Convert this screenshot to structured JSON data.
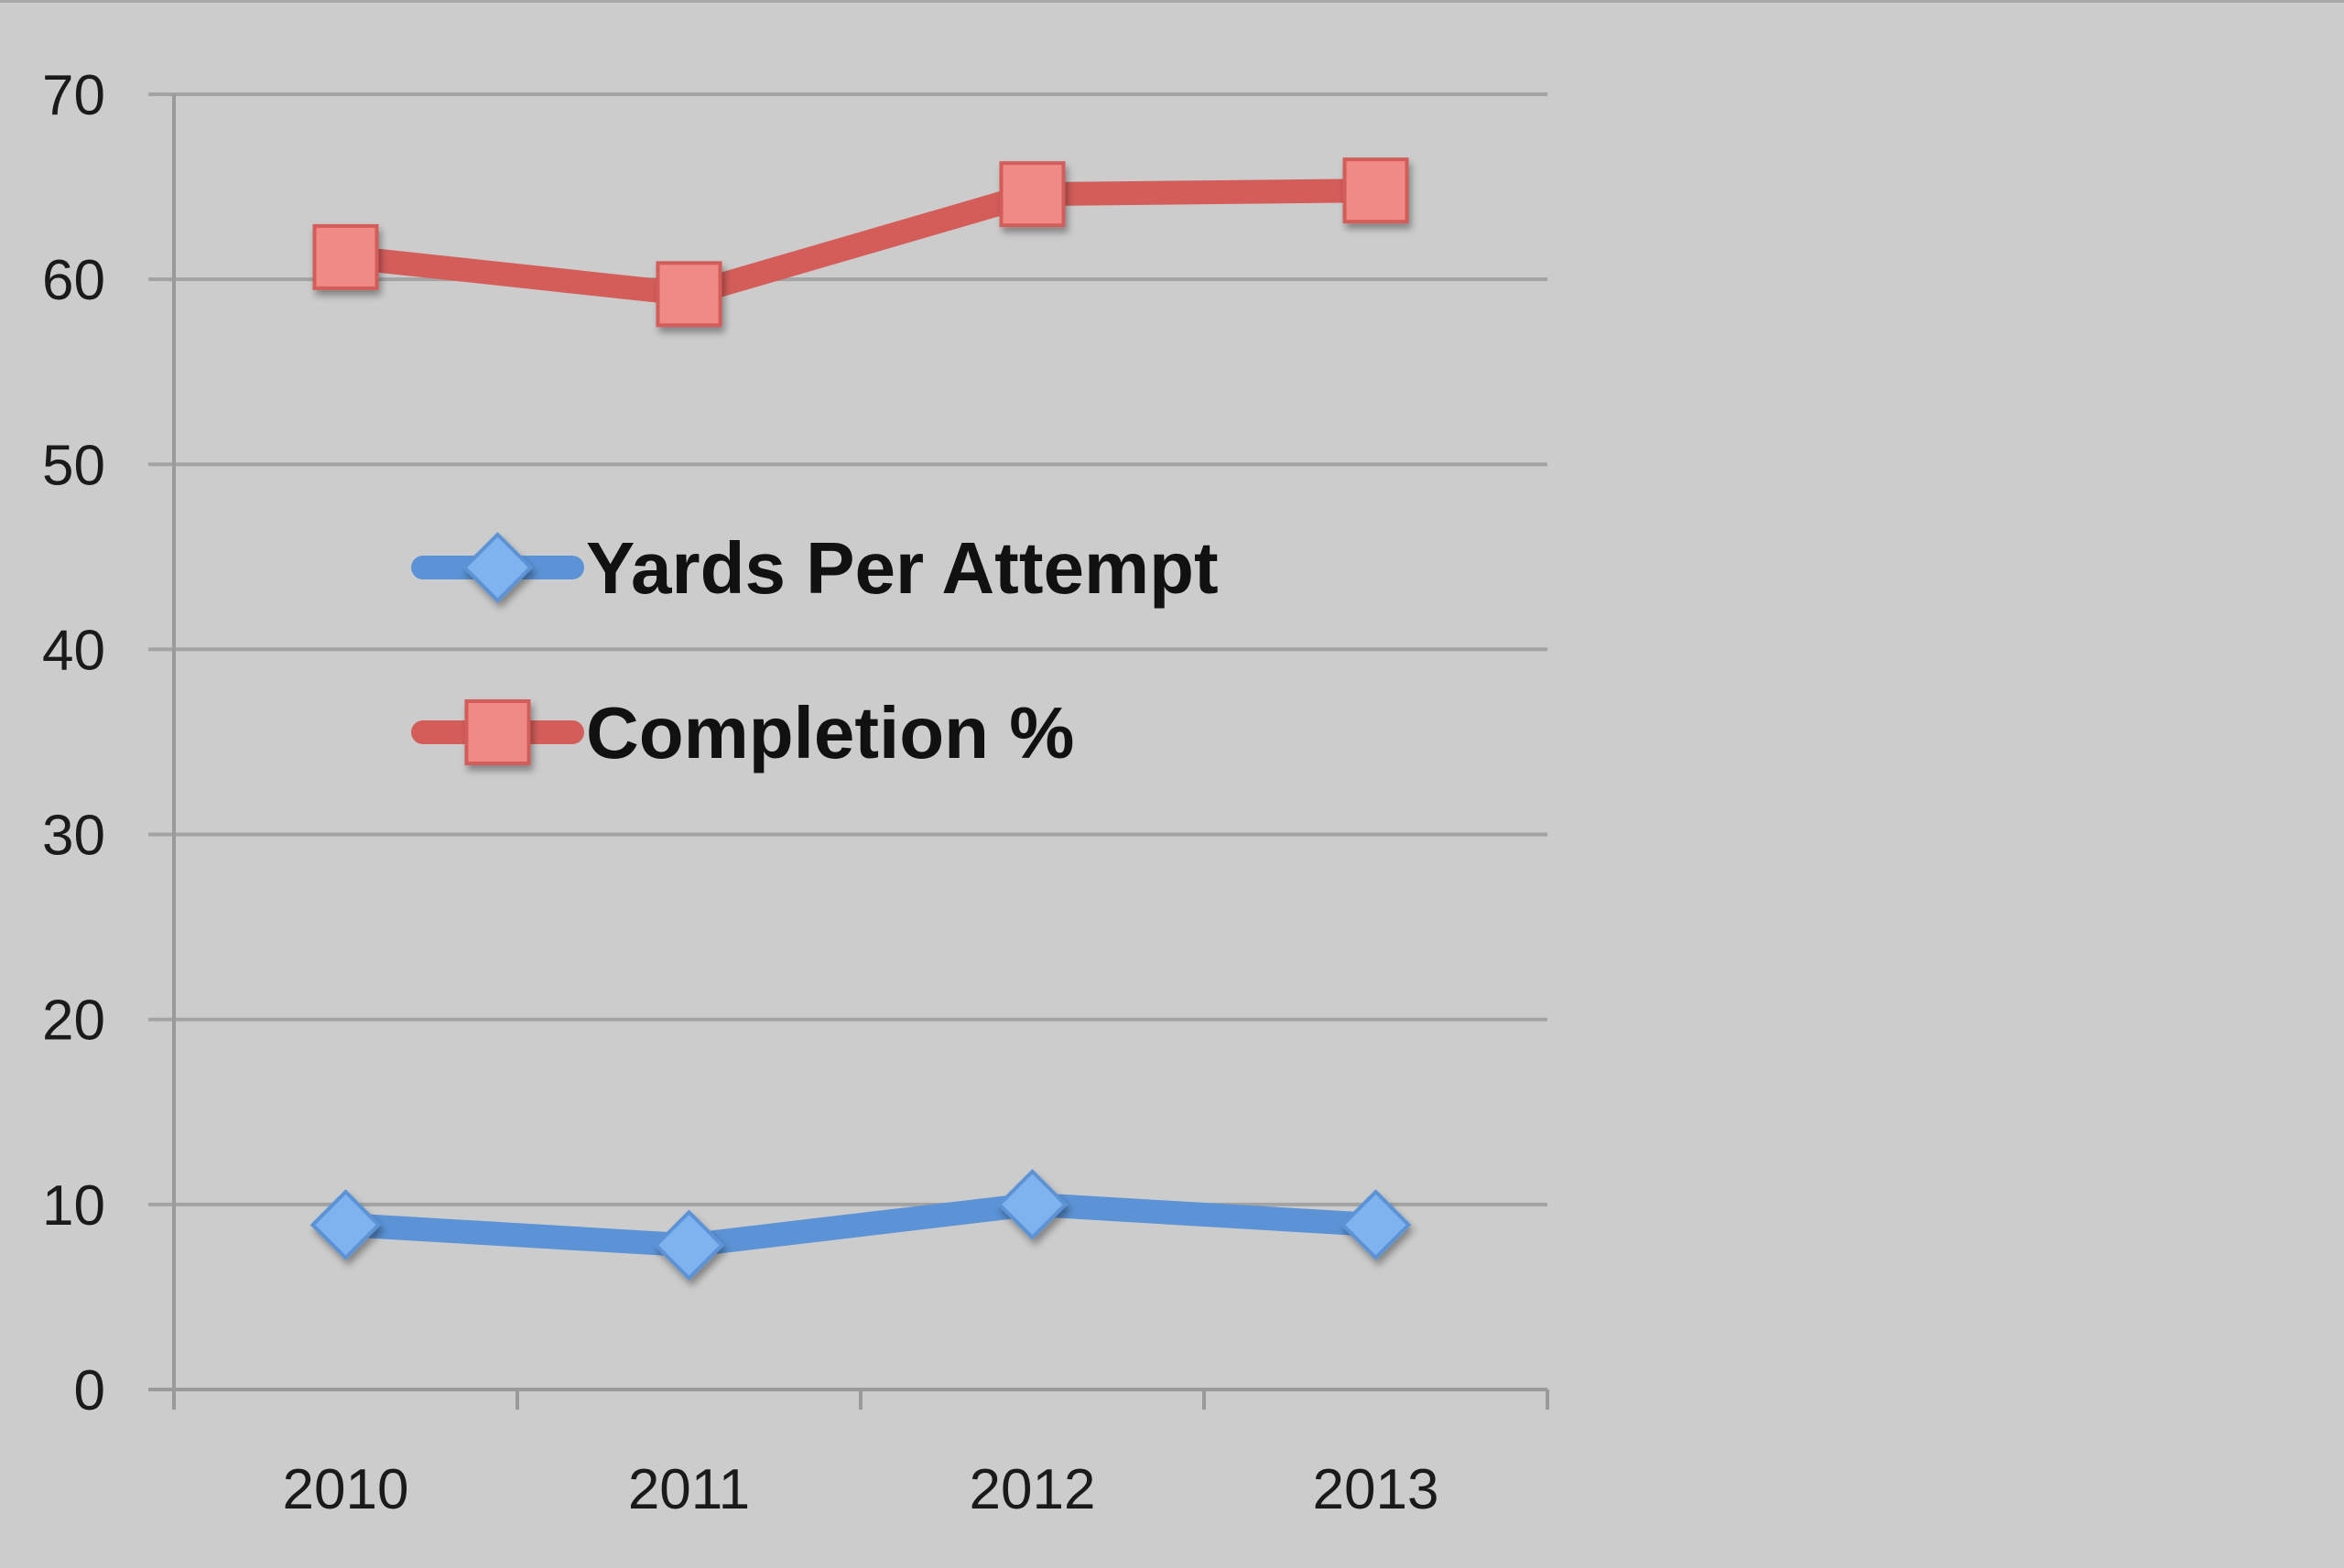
{
  "colors": {
    "background": "#cccccc",
    "gridline": "#a3a3a3",
    "axis": "#9a9a9a",
    "yards_line": "#5b93d6",
    "yards_marker": "#7fb3ef",
    "completion_line": "#d45d5a",
    "completion_marker": "#f08a86"
  },
  "chart_data": {
    "type": "line",
    "title": "",
    "xlabel": "",
    "ylabel": "",
    "categories": [
      "2010",
      "2011",
      "2012",
      "2013"
    ],
    "ylim": [
      0,
      70
    ],
    "yticks": [
      "0",
      "10",
      "20",
      "30",
      "40",
      "50",
      "60",
      "70"
    ],
    "grid": true,
    "legend_position": "center-left inside plot",
    "series": [
      {
        "name": "Yards Per Attempt",
        "values": [
          8.9,
          7.8,
          10.0,
          8.9
        ],
        "marker": "diamond",
        "color": "#5b93d6"
      },
      {
        "name": "Completion %",
        "values": [
          61.2,
          59.2,
          64.6,
          64.8
        ],
        "marker": "square",
        "color": "#d45d5a"
      }
    ]
  }
}
